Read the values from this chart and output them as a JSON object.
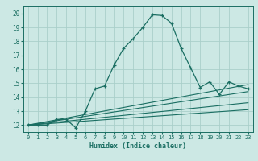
{
  "title": "",
  "xlabel": "Humidex (Indice chaleur)",
  "background_color": "#cce8e4",
  "grid_color": "#aacfca",
  "line_color": "#1a6e62",
  "xlim": [
    -0.5,
    23.5
  ],
  "ylim": [
    11.5,
    20.5
  ],
  "xticks": [
    0,
    1,
    2,
    3,
    4,
    5,
    6,
    7,
    8,
    9,
    10,
    11,
    12,
    13,
    14,
    15,
    16,
    17,
    18,
    19,
    20,
    21,
    22,
    23
  ],
  "yticks": [
    12,
    13,
    14,
    15,
    16,
    17,
    18,
    19,
    20
  ],
  "main_line_x": [
    0,
    1,
    2,
    3,
    4,
    5,
    6,
    7,
    8,
    9,
    10,
    11,
    12,
    13,
    14,
    15,
    16,
    17,
    18,
    19,
    20,
    21,
    22,
    23
  ],
  "main_line_y": [
    12,
    12,
    12,
    12.4,
    12.4,
    11.8,
    13,
    14.6,
    14.8,
    16.3,
    17.5,
    18.2,
    19.0,
    19.9,
    19.85,
    19.3,
    17.5,
    16.1,
    14.7,
    15.1,
    14.2,
    15.1,
    14.8,
    14.6
  ],
  "linear_lines": [
    {
      "x": [
        0,
        23
      ],
      "y": [
        12.0,
        14.9
      ]
    },
    {
      "x": [
        0,
        23
      ],
      "y": [
        12.0,
        14.4
      ]
    },
    {
      "x": [
        0,
        23
      ],
      "y": [
        12.0,
        13.6
      ]
    },
    {
      "x": [
        0,
        23
      ],
      "y": [
        12.0,
        13.1
      ]
    }
  ]
}
